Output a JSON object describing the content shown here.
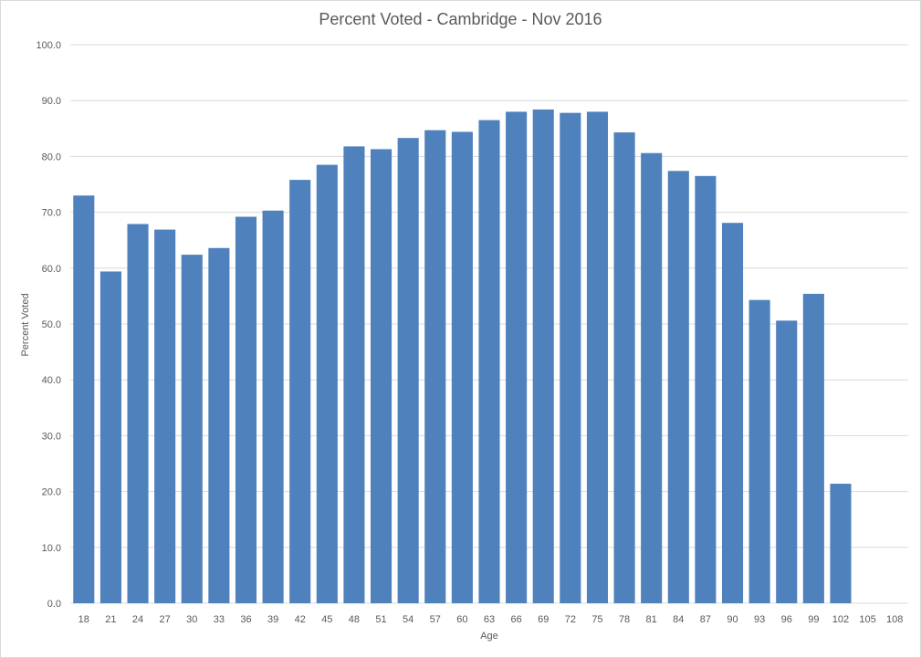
{
  "chart_data": {
    "type": "bar",
    "title": "Percent Voted - Cambridge - Nov 2016",
    "xlabel": "Age",
    "ylabel": "Percent Voted",
    "ylim": [
      0,
      100
    ],
    "yticks": [
      "0.0",
      "10.0",
      "20.0",
      "30.0",
      "40.0",
      "50.0",
      "60.0",
      "70.0",
      "80.0",
      "90.0",
      "100.0"
    ],
    "grid": true,
    "legend": "none",
    "bar_color": "#4f81bd",
    "categories": [
      "18",
      "21",
      "24",
      "27",
      "30",
      "33",
      "36",
      "39",
      "42",
      "45",
      "48",
      "51",
      "54",
      "57",
      "60",
      "63",
      "66",
      "69",
      "72",
      "75",
      "78",
      "81",
      "84",
      "87",
      "90",
      "93",
      "96",
      "99",
      "102",
      "105",
      "108"
    ],
    "values": [
      73.0,
      59.4,
      67.9,
      66.9,
      62.4,
      63.6,
      69.2,
      70.3,
      75.8,
      78.5,
      81.8,
      81.3,
      83.3,
      84.7,
      84.4,
      86.5,
      88.0,
      88.4,
      87.8,
      88.0,
      84.3,
      80.6,
      77.4,
      76.5,
      68.1,
      54.3,
      50.6,
      55.4,
      21.4,
      0,
      0
    ]
  }
}
